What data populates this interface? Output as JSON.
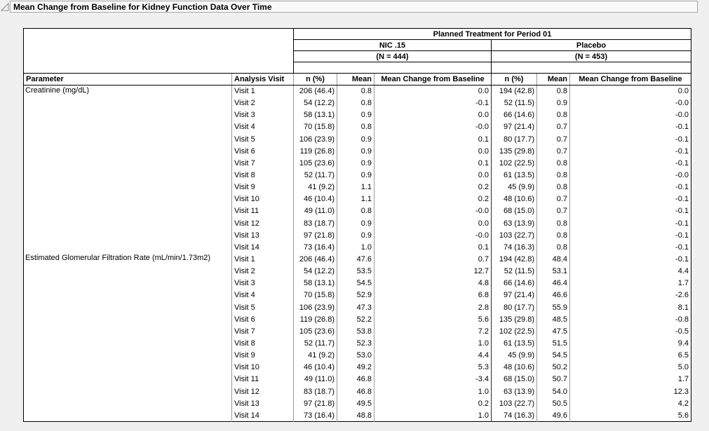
{
  "title": "Mean Change from Baseline for Kidney Function Data Over Time",
  "icons": {
    "disclosure": "open-disclosure-triangle"
  },
  "table": {
    "group_header": "Planned Treatment for Period 01",
    "columns": {
      "parameter": "Parameter",
      "visit": "Analysis Visit",
      "n_pct": "n (%)",
      "mean": "Mean",
      "mean_change": "Mean Change from Baseline"
    },
    "groups": [
      {
        "name": "NIC .15",
        "n": "(N = 444)"
      },
      {
        "name": "Placebo",
        "n": "(N = 453)"
      }
    ],
    "parameters": [
      {
        "name": "Creatinine (mg/dL)",
        "rows": [
          {
            "visit": "Visit 1",
            "nic": [
              "206 (46.4)",
              "0.8",
              "0.0"
            ],
            "placebo": [
              "194 (42.8)",
              "0.8",
              "0.0"
            ]
          },
          {
            "visit": "Visit 2",
            "nic": [
              "54 (12.2)",
              "0.8",
              "-0.1"
            ],
            "placebo": [
              "52 (11.5)",
              "0.9",
              "-0.0"
            ]
          },
          {
            "visit": "Visit 3",
            "nic": [
              "58 (13.1)",
              "0.9",
              "0.0"
            ],
            "placebo": [
              "66 (14.6)",
              "0.8",
              "-0.0"
            ]
          },
          {
            "visit": "Visit 4",
            "nic": [
              "70 (15.8)",
              "0.8",
              "-0.0"
            ],
            "placebo": [
              "97 (21.4)",
              "0.7",
              "-0.1"
            ]
          },
          {
            "visit": "Visit 5",
            "nic": [
              "106 (23.9)",
              "0.9",
              "0.1"
            ],
            "placebo": [
              "80 (17.7)",
              "0.7",
              "-0.1"
            ]
          },
          {
            "visit": "Visit 6",
            "nic": [
              "119 (26.8)",
              "0.9",
              "0.0"
            ],
            "placebo": [
              "135 (29.8)",
              "0.7",
              "-0.1"
            ]
          },
          {
            "visit": "Visit 7",
            "nic": [
              "105 (23.6)",
              "0.9",
              "0.1"
            ],
            "placebo": [
              "102 (22.5)",
              "0.8",
              "-0.1"
            ]
          },
          {
            "visit": "Visit 8",
            "nic": [
              "52 (11.7)",
              "0.9",
              "0.0"
            ],
            "placebo": [
              "61 (13.5)",
              "0.8",
              "-0.0"
            ]
          },
          {
            "visit": "Visit 9",
            "nic": [
              "41 (9.2)",
              "1.1",
              "0.2"
            ],
            "placebo": [
              "45 (9.9)",
              "0.8",
              "-0.1"
            ]
          },
          {
            "visit": "Visit 10",
            "nic": [
              "46 (10.4)",
              "1.1",
              "0.2"
            ],
            "placebo": [
              "48 (10.6)",
              "0.7",
              "-0.1"
            ]
          },
          {
            "visit": "Visit 11",
            "nic": [
              "49 (11.0)",
              "0.8",
              "-0.0"
            ],
            "placebo": [
              "68 (15.0)",
              "0.7",
              "-0.1"
            ]
          },
          {
            "visit": "Visit 12",
            "nic": [
              "83 (18.7)",
              "0.9",
              "0.0"
            ],
            "placebo": [
              "63 (13.9)",
              "0.8",
              "-0.1"
            ]
          },
          {
            "visit": "Visit 13",
            "nic": [
              "97 (21.8)",
              "0.9",
              "-0.0"
            ],
            "placebo": [
              "103 (22.7)",
              "0.8",
              "-0.1"
            ]
          },
          {
            "visit": "Visit 14",
            "nic": [
              "73 (16.4)",
              "1.0",
              "0.1"
            ],
            "placebo": [
              "74 (16.3)",
              "0.8",
              "-0.1"
            ]
          }
        ]
      },
      {
        "name": "Estimated Glomerular Filtration Rate (mL/min/1.73m2)",
        "rows": [
          {
            "visit": "Visit 1",
            "nic": [
              "206 (46.4)",
              "47.6",
              "0.7"
            ],
            "placebo": [
              "194 (42.8)",
              "48.4",
              "-0.1"
            ]
          },
          {
            "visit": "Visit 2",
            "nic": [
              "54 (12.2)",
              "53.5",
              "12.7"
            ],
            "placebo": [
              "52 (11.5)",
              "53.1",
              "4.4"
            ]
          },
          {
            "visit": "Visit 3",
            "nic": [
              "58 (13.1)",
              "54.5",
              "4.8"
            ],
            "placebo": [
              "66 (14.6)",
              "46.4",
              "1.7"
            ]
          },
          {
            "visit": "Visit 4",
            "nic": [
              "70 (15.8)",
              "52.9",
              "6.8"
            ],
            "placebo": [
              "97 (21.4)",
              "46.6",
              "-2.6"
            ]
          },
          {
            "visit": "Visit 5",
            "nic": [
              "106 (23.9)",
              "47.3",
              "2.8"
            ],
            "placebo": [
              "80 (17.7)",
              "55.9",
              "8.1"
            ]
          },
          {
            "visit": "Visit 6",
            "nic": [
              "119 (26.8)",
              "52.2",
              "5.6"
            ],
            "placebo": [
              "135 (29.8)",
              "48.5",
              "-0.8"
            ]
          },
          {
            "visit": "Visit 7",
            "nic": [
              "105 (23.6)",
              "53.8",
              "7.2"
            ],
            "placebo": [
              "102 (22.5)",
              "47.5",
              "-0.5"
            ]
          },
          {
            "visit": "Visit 8",
            "nic": [
              "52 (11.7)",
              "52.3",
              "1.0"
            ],
            "placebo": [
              "61 (13.5)",
              "51.5",
              "9.4"
            ]
          },
          {
            "visit": "Visit 9",
            "nic": [
              "41 (9.2)",
              "53.0",
              "4.4"
            ],
            "placebo": [
              "45 (9.9)",
              "54.5",
              "6.5"
            ]
          },
          {
            "visit": "Visit 10",
            "nic": [
              "46 (10.4)",
              "49.2",
              "5.3"
            ],
            "placebo": [
              "48 (10.6)",
              "50.2",
              "5.0"
            ]
          },
          {
            "visit": "Visit 11",
            "nic": [
              "49 (11.0)",
              "46.8",
              "-3.4"
            ],
            "placebo": [
              "68 (15.0)",
              "50.7",
              "1.7"
            ]
          },
          {
            "visit": "Visit 12",
            "nic": [
              "83 (18.7)",
              "46.8",
              "1.0"
            ],
            "placebo": [
              "63 (13.9)",
              "54.0",
              "12.3"
            ]
          },
          {
            "visit": "Visit 13",
            "nic": [
              "97 (21.8)",
              "49.5",
              "0.2"
            ],
            "placebo": [
              "103 (22.7)",
              "50.5",
              "4.2"
            ]
          },
          {
            "visit": "Visit 14",
            "nic": [
              "73 (16.4)",
              "48.8",
              "1.0"
            ],
            "placebo": [
              "74 (16.3)",
              "49.6",
              "5.6"
            ]
          }
        ]
      }
    ]
  }
}
